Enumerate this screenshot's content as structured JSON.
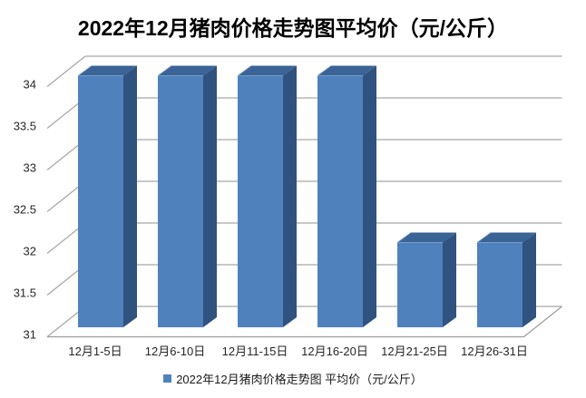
{
  "title": "2022年12月猪肉价格走势图平均价（元/公斤）",
  "legend": {
    "marker_color": "#4F81BD",
    "label": "2022年12月猪肉价格走势图 平均价（元/公斤）"
  },
  "chart_data": {
    "type": "bar",
    "style": "3d-column",
    "title": "2022年12月猪肉价格走势图平均价（元/公斤）",
    "categories": [
      "12月1-5日",
      "12月6-10日",
      "12月11-15日",
      "12月16-20日",
      "12月21-25日",
      "12月26-31日"
    ],
    "series": [
      {
        "name": "2022年12月猪肉价格走势图 平均价（元/公斤）",
        "values": [
          34,
          34,
          34,
          34,
          32,
          32
        ]
      }
    ],
    "xlabel": "",
    "ylabel": "",
    "ylim": [
      31,
      34
    ],
    "ytick_step": 0.5,
    "ytick_labels": [
      "31",
      "31.5",
      "32",
      "32.5",
      "33",
      "33.5",
      "34"
    ],
    "grid": true,
    "legend_position": "bottom",
    "colors": {
      "bar_front": "#4F81BD",
      "bar_side": "#2F527F",
      "bar_top": "#3A6396",
      "bar_bevel": "#7CA2CE",
      "gridline": "#A6A6A6",
      "floor_line": "#9C9C9C",
      "axis_text": "#262626"
    }
  }
}
